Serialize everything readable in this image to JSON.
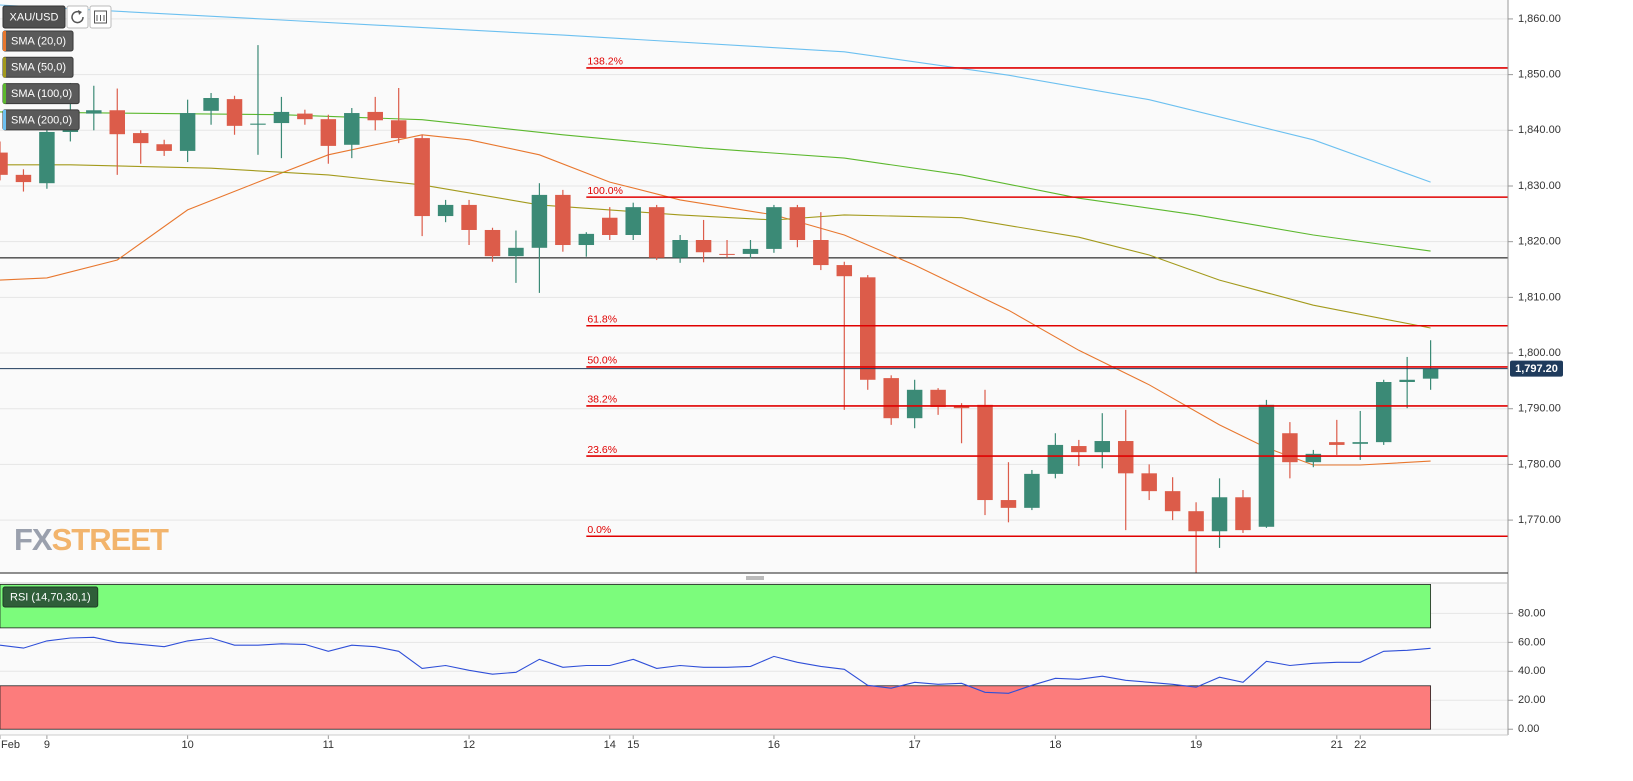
{
  "symbol": "XAU/USD",
  "logo": [
    "FX",
    "STREET"
  ],
  "chart_data": [
    {
      "type": "candlestick",
      "xlim": [
        0,
        64.3
      ],
      "ylim": [
        1760.5,
        1863.4
      ],
      "yticks": [
        {
          "value": 1770,
          "label": "1,770.00"
        },
        {
          "value": 1780,
          "label": "1,780.00"
        },
        {
          "value": 1790,
          "label": "1,790.00"
        },
        {
          "value": 1800,
          "label": "1,800.00"
        },
        {
          "value": 1810,
          "label": "1,810.00"
        },
        {
          "value": 1820,
          "label": "1,820.00"
        },
        {
          "value": 1830,
          "label": "1,830.00"
        },
        {
          "value": 1840,
          "label": "1,840.00"
        },
        {
          "value": 1850,
          "label": "1,850.00"
        },
        {
          "value": 1860,
          "label": "1,860.00"
        }
      ],
      "grid": true,
      "bull_color": "#3b8a76",
      "bear_color": "#dc5c4a",
      "open": [
        1836,
        1832,
        1830.5,
        1839.7,
        1843,
        1843.6,
        1839.5,
        1837.5,
        1836.3,
        1843.5,
        1845.6,
        1841,
        1841.3,
        1843,
        1842,
        1837.4,
        1843.3,
        1841.8,
        1838.6,
        1824.6,
        1826.6,
        1822.1,
        1817.4,
        1818.9,
        1828.4,
        1819.4,
        1824.3,
        1821.2,
        1826.2,
        1817.1,
        1820.3,
        1817.8,
        1817.8,
        1818.7,
        1826.2,
        1820.3,
        1815.8,
        1813.6,
        1795.5,
        1788.3,
        1793.4,
        1790.5,
        1790.7,
        1773.6,
        1772.2,
        1778.3,
        1783.3,
        1782.2,
        1784.2,
        1778.4,
        1775.2,
        1771.6,
        1768,
        1774.1,
        1768.8,
        1785.6,
        1780.4,
        1784,
        1783.7,
        1784,
        1794.8,
        1795.4
      ],
      "high": [
        1838,
        1833,
        1843,
        1848.5,
        1848,
        1847.5,
        1840,
        1838.3,
        1845.5,
        1846.7,
        1846.2,
        1855.3,
        1846,
        1843.7,
        1842.8,
        1844,
        1846,
        1847.6,
        1839.2,
        1827.5,
        1827.5,
        1822.5,
        1822,
        1830.5,
        1829.3,
        1821.7,
        1826.2,
        1827,
        1826.6,
        1821.2,
        1823.9,
        1820.3,
        1820.3,
        1826.6,
        1826.6,
        1825.3,
        1816.4,
        1814,
        1796,
        1795.2,
        1793.7,
        1791,
        1793.4,
        1780.4,
        1779,
        1785.6,
        1784.4,
        1789.2,
        1789.8,
        1780,
        1777.7,
        1773.2,
        1777.5,
        1775.4,
        1791.6,
        1787.6,
        1782.6,
        1788,
        1789.6,
        1795.2,
        1799.3,
        1802.3
      ],
      "low": [
        1831,
        1829,
        1829.5,
        1838,
        1840,
        1832,
        1834,
        1835.4,
        1834.3,
        1841,
        1839.2,
        1835.6,
        1835,
        1841,
        1834,
        1835,
        1840,
        1837.7,
        1821,
        1823.5,
        1819.4,
        1816.4,
        1812.6,
        1810.8,
        1818.2,
        1817.3,
        1820.3,
        1820.3,
        1816.7,
        1816.2,
        1816.3,
        1817.1,
        1817,
        1818,
        1819,
        1814.9,
        1789.8,
        1793.4,
        1787.1,
        1786.5,
        1788.9,
        1783.8,
        1770.9,
        1769.6,
        1771.8,
        1777.5,
        1779.7,
        1779.3,
        1768.2,
        1773.6,
        1770,
        1760.5,
        1765,
        1767.7,
        1768.6,
        1777.5,
        1779.5,
        1781.7,
        1780.8,
        1783.5,
        1790.1,
        1793.4
      ],
      "close": [
        1832,
        1830.7,
        1839.7,
        1840.3,
        1843.6,
        1839.3,
        1837.7,
        1836.3,
        1843.1,
        1845.8,
        1840.8,
        1841.2,
        1843.3,
        1842,
        1837.2,
        1843.1,
        1841.8,
        1838.6,
        1824.6,
        1826.6,
        1822.1,
        1817.4,
        1818.9,
        1828.4,
        1819.4,
        1821.4,
        1821.2,
        1826.2,
        1817.1,
        1820.3,
        1818.1,
        1817.7,
        1818.7,
        1826.2,
        1820.3,
        1815.8,
        1813.8,
        1795.2,
        1788.3,
        1793.4,
        1790.3,
        1790.1,
        1773.6,
        1772.2,
        1778.3,
        1783.5,
        1782.2,
        1784.2,
        1778.4,
        1775.2,
        1771.6,
        1768,
        1774.1,
        1768.2,
        1790.7,
        1780.4,
        1781.9,
        1783.5,
        1784,
        1794.8,
        1795.2,
        1797.2
      ],
      "series": [
        {
          "name": "SMA (20,0)",
          "color": "#e8772e",
          "x": [
            0,
            2,
            5,
            8,
            11,
            14,
            18,
            20,
            23,
            26,
            29,
            33,
            36,
            39,
            43,
            46,
            49,
            52,
            54,
            56,
            58,
            61
          ],
          "values": [
            1813.1,
            1813.5,
            1816.7,
            1825.7,
            1830.7,
            1835.6,
            1839.2,
            1838.3,
            1835.6,
            1830.7,
            1827.5,
            1824.8,
            1821.2,
            1815.8,
            1807.7,
            1800.5,
            1794.3,
            1787.1,
            1783,
            1779.9,
            1779.9,
            1780.6
          ]
        },
        {
          "name": "SMA (50,0)",
          "color": "#a39a1c",
          "x": [
            0,
            3,
            9,
            14,
            18,
            23,
            29,
            33,
            36,
            41,
            46,
            49,
            52,
            56,
            61
          ],
          "values": [
            1833.8,
            1833.8,
            1833.2,
            1832,
            1830.2,
            1826.6,
            1824.8,
            1823.9,
            1824.8,
            1824.3,
            1820.8,
            1817.6,
            1813.1,
            1808.6,
            1804.5
          ]
        },
        {
          "name": "SMA (100,0)",
          "color": "#5cb82e",
          "x": [
            0,
            12,
            18,
            24,
            30,
            36,
            41,
            46,
            51,
            56,
            61
          ],
          "values": [
            1843.3,
            1842.8,
            1841.9,
            1839.2,
            1836.8,
            1835,
            1832,
            1827.8,
            1824.8,
            1821.2,
            1818.3
          ]
        },
        {
          "name": "SMA (200,0)",
          "color": "#6cc0f0",
          "x": [
            0,
            12,
            24,
            36,
            43,
            49,
            56,
            61
          ],
          "values": [
            1862.5,
            1859.8,
            1857.1,
            1854.1,
            1849.9,
            1845.5,
            1838.3,
            1830.7
          ]
        }
      ],
      "fib_color": "#e00000",
      "levels": [
        {
          "label": "138.2%",
          "value": 1851.2
        },
        {
          "label": "100.0%",
          "value": 1828
        },
        {
          "label": "61.8%",
          "value": 1804.9
        },
        {
          "label": "50.0%",
          "value": 1797.5
        },
        {
          "label": "38.2%",
          "value": 1790.5
        },
        {
          "label": "23.6%",
          "value": 1781.5
        },
        {
          "label": "0.0%",
          "value": 1767.1
        }
      ],
      "hlines": [
        {
          "value": 1817.1,
          "color": "#000000"
        }
      ],
      "last_price": {
        "value": 1797.2,
        "label": "1,797.20",
        "color": "#1f3b5c"
      }
    },
    {
      "type": "line",
      "xlim": [
        0,
        64.3
      ],
      "ylim": [
        -4,
        101
      ],
      "yticks": [
        {
          "value": 0,
          "label": "0.00"
        },
        {
          "value": 20,
          "label": "20.00"
        },
        {
          "value": 40,
          "label": "40.00"
        },
        {
          "value": 60,
          "label": "60.00"
        },
        {
          "value": 80,
          "label": "80.00"
        }
      ],
      "xticks": [
        {
          "value": 0,
          "label": "Feb"
        },
        2,
        8,
        14,
        20,
        26,
        27,
        33,
        39,
        45,
        51,
        57,
        58
      ],
      "xtick_labels": [
        "Feb",
        "9",
        "10",
        "11",
        "12",
        "14",
        "15",
        "16",
        "17",
        "18",
        "19",
        "21",
        "22"
      ],
      "grid": true,
      "bands": [
        {
          "from": 70,
          "to": 100,
          "color": "#7cfc7c"
        },
        {
          "from": 0,
          "to": 30,
          "color": "#fc7c7c"
        }
      ],
      "series": [
        {
          "name": "RSI (14,70,30,1)",
          "color": "#2f4fd8",
          "values": [
            58,
            56,
            61,
            63,
            63.5,
            60,
            58.6,
            57,
            61,
            63,
            58,
            58,
            59,
            58.6,
            53.8,
            58,
            57,
            53.8,
            42,
            44,
            40.7,
            38,
            39.3,
            48.3,
            42.8,
            44,
            44,
            48.3,
            42,
            44,
            42.8,
            42.8,
            43.4,
            50.3,
            46.2,
            43.4,
            41.4,
            30.3,
            28.3,
            32.4,
            31,
            31.7,
            25.5,
            24.8,
            30.3,
            35.2,
            34.5,
            36.6,
            33.8,
            32.4,
            31,
            29,
            35.9,
            32.4,
            46.9,
            44,
            45.5,
            46.2,
            46.2,
            53.8,
            54.5,
            55.9
          ]
        }
      ]
    }
  ]
}
